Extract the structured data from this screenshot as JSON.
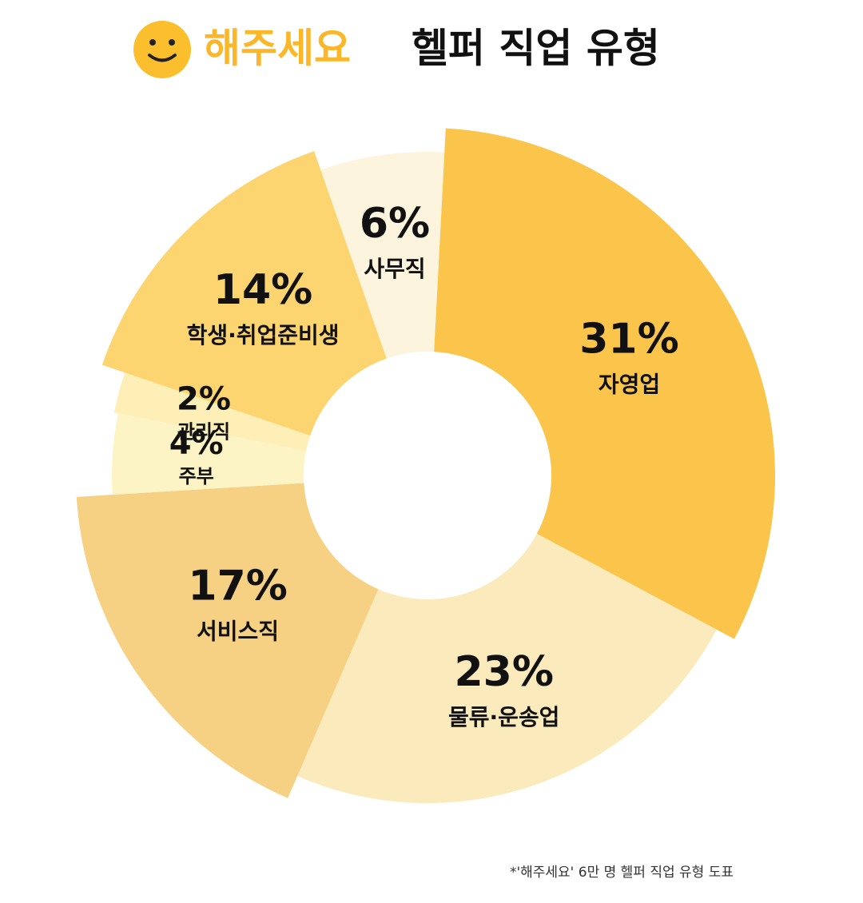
{
  "chart_data": {
    "type": "pie",
    "brand": "해주세요",
    "title": "헬퍼 직업 유형",
    "categories": [
      "자영업",
      "물류·운송업",
      "서비스직",
      "주부",
      "관리직",
      "학생·취업준비생",
      "사무직"
    ],
    "values": [
      31,
      23,
      17,
      4,
      2,
      14,
      6
    ],
    "value_labels": [
      "31%",
      "23%",
      "17%",
      "4%",
      "2%",
      "14%",
      "6%"
    ],
    "colors": [
      "#fbc54c",
      "#fbeabb",
      "#f6d083",
      "#fdf4c6",
      "#fdefb6",
      "#fcd470",
      "#fdf4de"
    ],
    "source": "*'해주세요' 6만 명 헬퍼 직업 유형 도표"
  }
}
